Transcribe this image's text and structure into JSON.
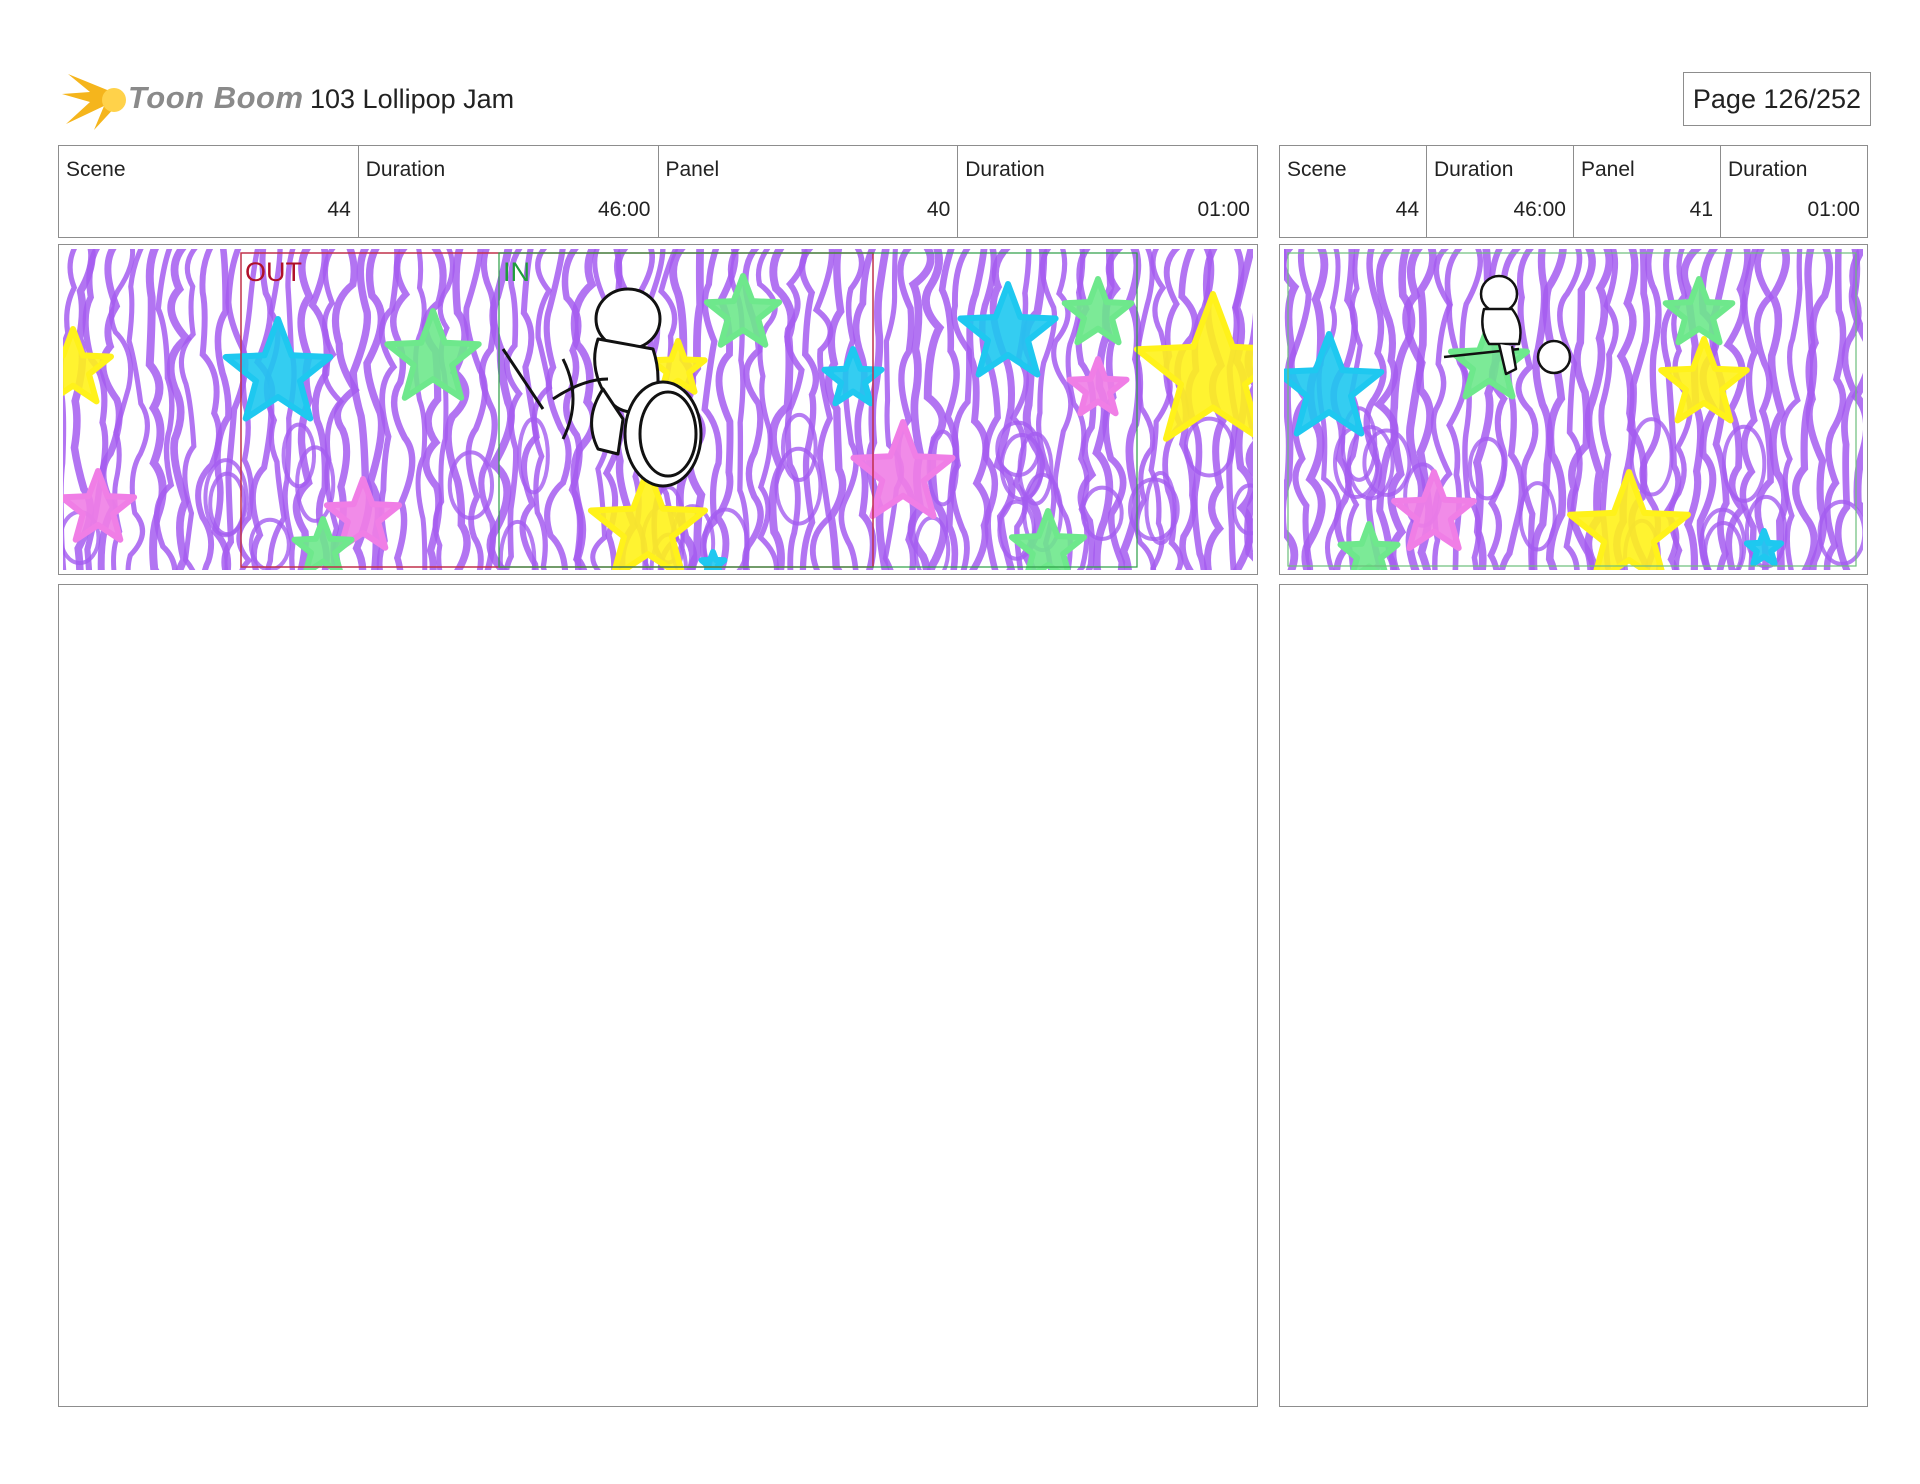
{
  "header": {
    "logo_text": "Toon Boom",
    "title": "103 Lollipop Jam",
    "page": "Page 126/252"
  },
  "panels": [
    {
      "labels": {
        "scene": "Scene",
        "scene_duration": "Duration",
        "panel": "Panel",
        "panel_duration": "Duration"
      },
      "scene": "44",
      "scene_duration": "46:00",
      "panel": "40",
      "panel_duration": "01:00",
      "markers": {
        "out": "OUT",
        "in": "IN"
      }
    },
    {
      "labels": {
        "scene": "Scene",
        "scene_duration": "Duration",
        "panel": "Panel",
        "panel_duration": "Duration"
      },
      "scene": "44",
      "scene_duration": "46:00",
      "panel": "41",
      "panel_duration": "01:00"
    }
  ],
  "colors": {
    "scribble": "#a45cf0",
    "star_cyan": "#1ec8f0",
    "star_green": "#6ee88c",
    "star_yellow": "#fff21a",
    "star_pink": "#f07ee6",
    "out_marker": "#b0102a",
    "in_marker": "#1e9e3a",
    "logo_flame": "#f5b51c"
  }
}
